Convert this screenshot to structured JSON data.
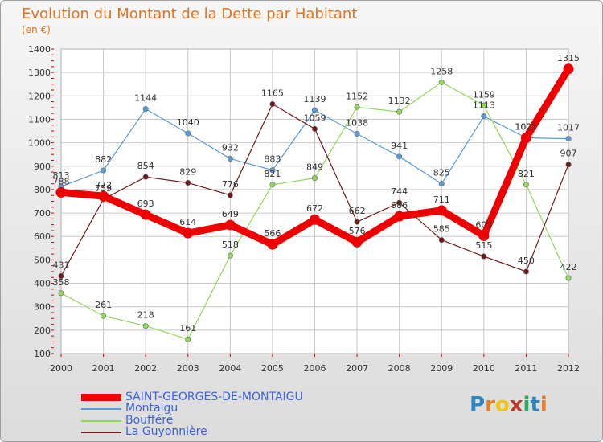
{
  "title": "Evolution du Montant de la Dette par Habitant",
  "subtitle": "(en €)",
  "logo": {
    "letters": [
      "P",
      "r",
      "o",
      "x",
      "i",
      "t",
      "i"
    ],
    "colors": [
      "#2e86c1",
      "#e67e22",
      "#f1c40f",
      "#c0392b",
      "#27ae60",
      "#2e86c1",
      "#e67e22"
    ]
  },
  "chart_data": {
    "type": "line",
    "title": "Evolution du Montant de la Dette par Habitant",
    "ylabel": "(en €)",
    "x": [
      "2000",
      "2001",
      "2002",
      "2003",
      "2004",
      "2005",
      "2006",
      "2007",
      "2008",
      "2009",
      "2010",
      "2011",
      "2012"
    ],
    "yticks": [
      100,
      200,
      300,
      400,
      500,
      600,
      700,
      800,
      900,
      1000,
      1100,
      1200,
      1300,
      1400
    ],
    "ylim": [
      100,
      1400
    ],
    "grid": true,
    "series": [
      {
        "name": "SAINT-GEORGES-DE-MONTAIGU",
        "color": "#ee0000",
        "values": [
          788,
          772,
          693,
          614,
          649,
          566,
          672,
          576,
          686,
          711,
          603,
          1021,
          1315
        ]
      },
      {
        "name": "Montaigu",
        "color": "#5b9bd5",
        "values": [
          813,
          882,
          1144,
          1040,
          932,
          883,
          1139,
          1038,
          941,
          825,
          1113,
          1021,
          1017
        ]
      },
      {
        "name": "Boufféré",
        "color": "#8fd85a",
        "values": [
          358,
          261,
          218,
          161,
          518,
          821,
          849,
          1152,
          1132,
          1258,
          1159,
          821,
          422
        ]
      },
      {
        "name": "La Guyonnière",
        "color": "#6e1a1a",
        "values": [
          431,
          759,
          854,
          829,
          776,
          1165,
          1059,
          662,
          744,
          585,
          515,
          450,
          907
        ]
      }
    ]
  }
}
